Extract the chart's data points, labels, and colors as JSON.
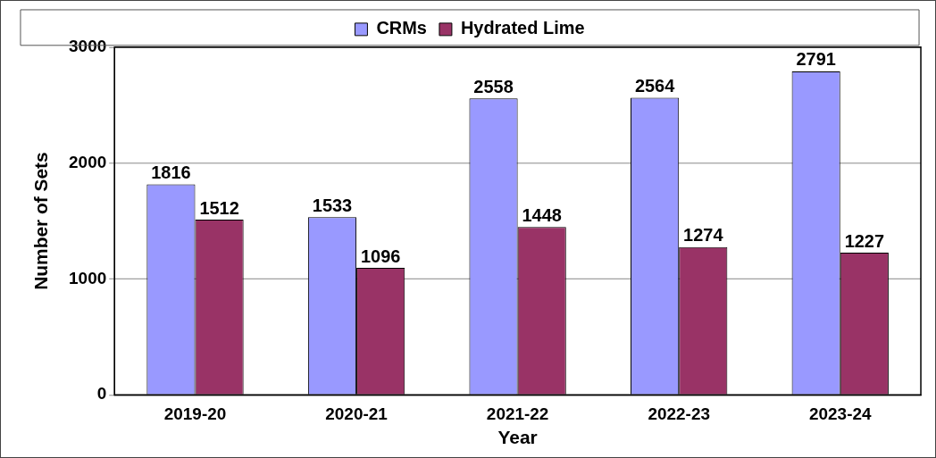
{
  "chart_data": {
    "type": "bar",
    "xlabel": "Year",
    "ylabel": "Number of Sets",
    "categories": [
      "2019-20",
      "2020-21",
      "2021-22",
      "2022-23",
      "2023-24"
    ],
    "series": [
      {
        "name": "CRMs",
        "color": "#9999ff",
        "values": [
          1816,
          1533,
          2558,
          2564,
          2791
        ]
      },
      {
        "name": "Hydrated Lime",
        "color": "#993366",
        "values": [
          1512,
          1096,
          1448,
          1274,
          1227
        ]
      }
    ],
    "ylim": [
      0,
      3000
    ],
    "yticks": [
      0,
      1000,
      2000,
      3000
    ],
    "grid": "y",
    "legend": "top",
    "data_labels": true
  }
}
